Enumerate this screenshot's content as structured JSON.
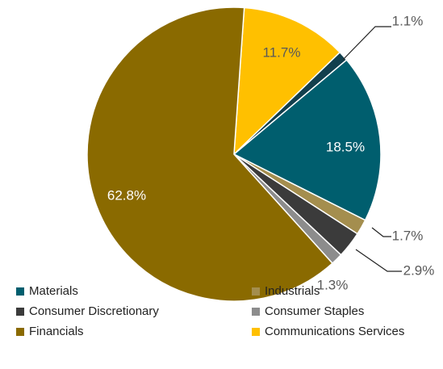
{
  "chart_data": {
    "type": "pie",
    "categories": [
      "Communications Services",
      null,
      "Materials",
      "Industrials",
      "Consumer Discretionary",
      "Consumer Staples",
      "Financials"
    ],
    "values": [
      11.7,
      1.1,
      18.5,
      1.7,
      2.9,
      1.3,
      62.8
    ],
    "value_labels": [
      "11.7%",
      "1.1%",
      "18.5%",
      "1.7%",
      "2.9%",
      "1.3%",
      "62.8%"
    ],
    "colors": [
      "#ffc000",
      "#123f4d",
      "#005e6e",
      "#a48e4e",
      "#3b3b3b",
      "#8c8c8c",
      "#8a6a00"
    ],
    "legend": "bottom"
  }
}
